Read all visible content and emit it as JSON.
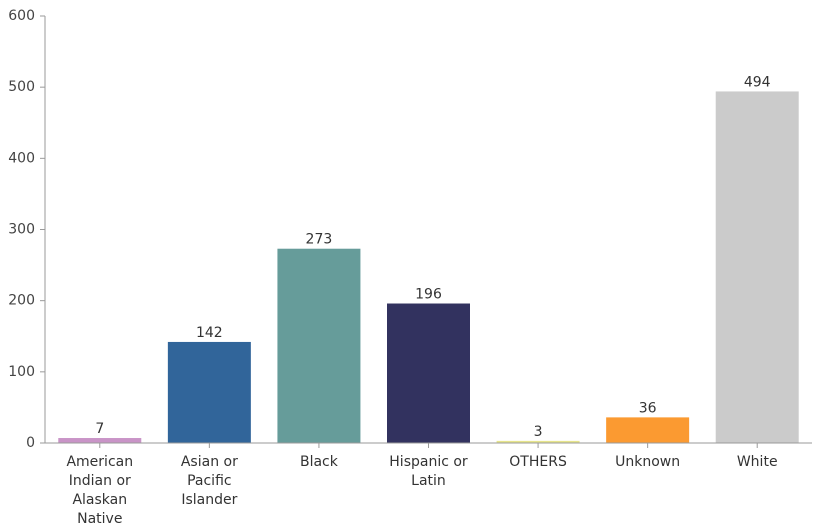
{
  "chart_data": {
    "type": "bar",
    "title": "",
    "xlabel": "",
    "ylabel": "",
    "ylim": [
      0,
      600
    ],
    "yticks": [
      0,
      100,
      200,
      300,
      400,
      500,
      600
    ],
    "grid": false,
    "legend": "none",
    "categories": [
      "American Indian or Alaskan Native",
      "Asian or Pacific Islander",
      "Black",
      "Hispanic or Latin",
      "OTHERS",
      "Unknown",
      "White"
    ],
    "category_label_lines": [
      [
        "American",
        "Indian or",
        "Alaskan",
        "Native"
      ],
      [
        "Asian or",
        "Pacific",
        "Islander"
      ],
      [
        "Black"
      ],
      [
        "Hispanic or",
        "Latin"
      ],
      [
        "OTHERS"
      ],
      [
        "Unknown"
      ],
      [
        "White"
      ]
    ],
    "values": [
      7,
      142,
      273,
      196,
      3,
      36,
      494
    ],
    "colors": [
      "#c994c7",
      "#31659a",
      "#669c9a",
      "#32325f",
      "#e7e58c",
      "#fb9a31",
      "#cbcbcb"
    ]
  }
}
